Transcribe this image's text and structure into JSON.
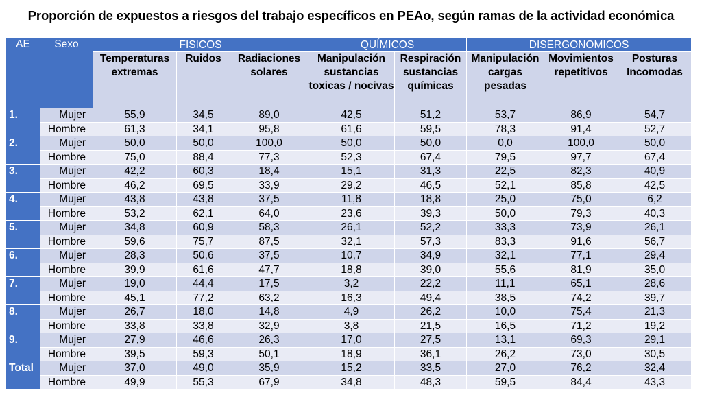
{
  "title": "Proporción de expuestos a riesgos del trabajo específicos en PEAo, según ramas de la actividad económica",
  "headers": {
    "ae": "AE",
    "sexo": "Sexo",
    "groups": [
      "FISICOS",
      "QUÍMICOS",
      "DISERGONOMICOS"
    ],
    "columns": [
      "Temperaturas extremas",
      "Ruidos",
      "Radiaciones solares",
      "Manipulación sustancias toxicas / nocivas",
      "Respiración sustancias químicas",
      "Manipulación cargas pesadas",
      "Movimientos repetitivos",
      "Posturas Incomodas"
    ]
  },
  "rows": [
    {
      "ae": "1.",
      "sexo": "Mujer",
      "values": [
        "55,9",
        "34,5",
        "89,0",
        "42,5",
        "51,2",
        "53,7",
        "86,9",
        "54,7"
      ]
    },
    {
      "ae": "",
      "sexo": "Hombre",
      "values": [
        "61,3",
        "34,1",
        "95,8",
        "61,6",
        "59,5",
        "78,3",
        "91,4",
        "52,7"
      ]
    },
    {
      "ae": "2.",
      "sexo": "Mujer",
      "values": [
        "50,0",
        "50,0",
        "100,0",
        "50,0",
        "50,0",
        "0,0",
        "100,0",
        "50,0"
      ]
    },
    {
      "ae": "",
      "sexo": "Hombre",
      "values": [
        "75,0",
        "88,4",
        "77,3",
        "52,3",
        "67,4",
        "79,5",
        "97,7",
        "67,4"
      ]
    },
    {
      "ae": "3.",
      "sexo": "Mujer",
      "values": [
        "42,2",
        "60,3",
        "18,4",
        "15,1",
        "31,3",
        "22,5",
        "82,3",
        "40,9"
      ]
    },
    {
      "ae": "",
      "sexo": "Hombre",
      "values": [
        "46,2",
        "69,5",
        "33,9",
        "29,2",
        "46,5",
        "52,1",
        "85,8",
        "42,5"
      ]
    },
    {
      "ae": "4.",
      "sexo": "Mujer",
      "values": [
        "43,8",
        "43,8",
        "37,5",
        "11,8",
        "18,8",
        "25,0",
        "75,0",
        "6,2"
      ]
    },
    {
      "ae": "",
      "sexo": "Hombre",
      "values": [
        "53,2",
        "62,1",
        "64,0",
        "23,6",
        "39,3",
        "50,0",
        "79,3",
        "40,3"
      ]
    },
    {
      "ae": "5.",
      "sexo": "Mujer",
      "values": [
        "34,8",
        "60,9",
        "58,3",
        "26,1",
        "52,2",
        "33,3",
        "73,9",
        "26,1"
      ]
    },
    {
      "ae": "",
      "sexo": "Hombre",
      "values": [
        "59,6",
        "75,7",
        "87,5",
        "32,1",
        "57,3",
        "83,3",
        "91,6",
        "56,7"
      ]
    },
    {
      "ae": "6.",
      "sexo": "Mujer",
      "values": [
        "28,3",
        "50,6",
        "37,5",
        "10,7",
        "34,9",
        "32,1",
        "77,1",
        "29,4"
      ]
    },
    {
      "ae": "",
      "sexo": "Hombre",
      "values": [
        "39,9",
        "61,6",
        "47,7",
        "18,8",
        "39,0",
        "55,6",
        "81,9",
        "35,0"
      ]
    },
    {
      "ae": "7.",
      "sexo": "Mujer",
      "values": [
        "19,0",
        "44,4",
        "17,5",
        "3,2",
        "22,2",
        "11,1",
        "65,1",
        "28,6"
      ]
    },
    {
      "ae": "",
      "sexo": "Hombre",
      "values": [
        "45,1",
        "77,2",
        "63,2",
        "16,3",
        "49,4",
        "38,5",
        "74,2",
        "39,7"
      ]
    },
    {
      "ae": "8.",
      "sexo": "Mujer",
      "values": [
        "26,7",
        "18,0",
        "14,8",
        "4,9",
        "26,2",
        "10,0",
        "75,4",
        "21,3"
      ]
    },
    {
      "ae": "",
      "sexo": "Hombre",
      "values": [
        "33,8",
        "33,8",
        "32,9",
        "3,8",
        "21,5",
        "16,5",
        "71,2",
        "19,2"
      ]
    },
    {
      "ae": "9.",
      "sexo": "Mujer",
      "values": [
        "27,9",
        "46,6",
        "26,3",
        "17,0",
        "27,5",
        "13,1",
        "69,3",
        "29,1"
      ]
    },
    {
      "ae": "",
      "sexo": "Hombre",
      "values": [
        "39,5",
        "59,3",
        "50,1",
        "18,9",
        "36,1",
        "26,2",
        "73,0",
        "30,5"
      ]
    },
    {
      "ae": "Total",
      "sexo": "Mujer",
      "values": [
        "37,0",
        "49,0",
        "35,9",
        "15,2",
        "33,5",
        "27,0",
        "76,2",
        "32,4"
      ]
    },
    {
      "ae": "",
      "sexo": "Hombre",
      "values": [
        "49,9",
        "55,3",
        "67,9",
        "34,8",
        "48,3",
        "59,5",
        "84,4",
        "43,3"
      ]
    }
  ],
  "colors": {
    "header_blue": "#4472c4",
    "row_dark": "#cfd5ea",
    "row_light": "#e9ebf5"
  }
}
